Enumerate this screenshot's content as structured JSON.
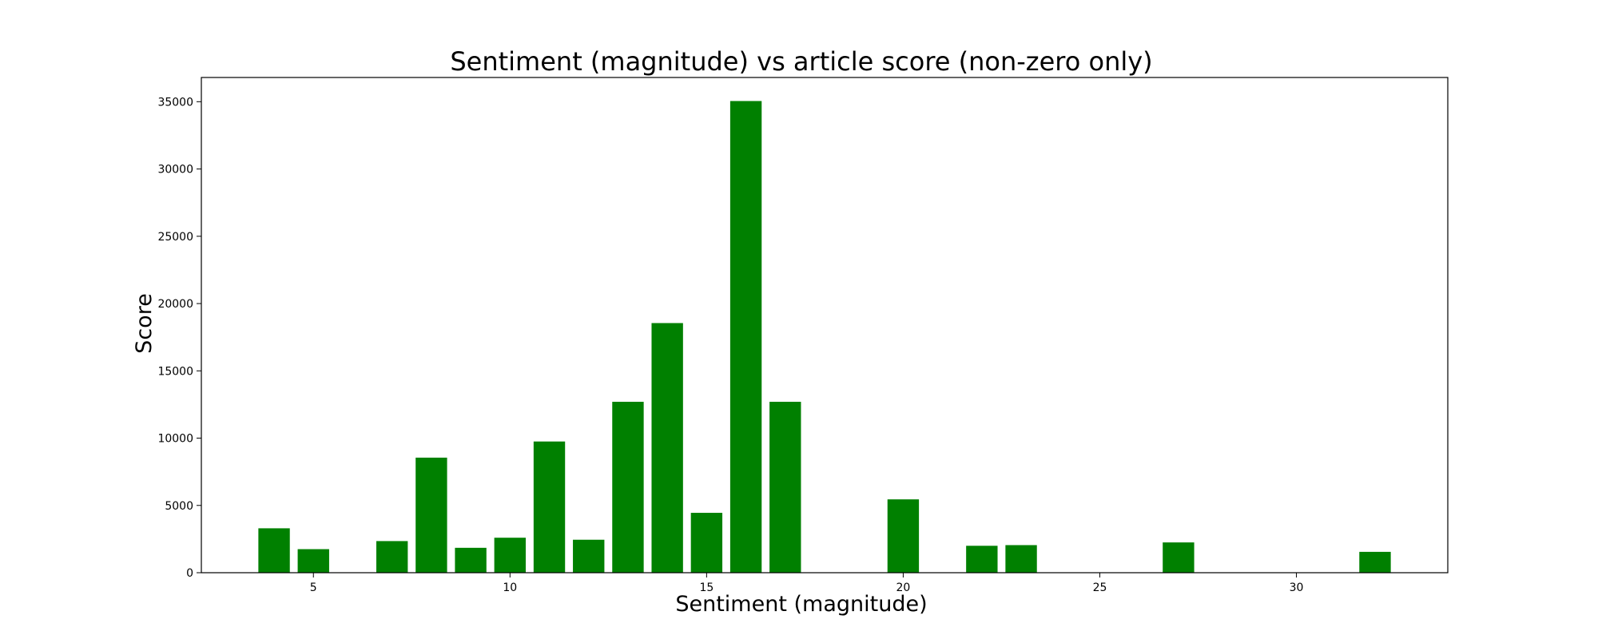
{
  "chart_data": {
    "type": "bar",
    "title": "Sentiment (magnitude) vs article score (non-zero only)",
    "xlabel": "Sentiment (magnitude)",
    "ylabel": "Score",
    "x": [
      4,
      5,
      7,
      8,
      9,
      10,
      11,
      12,
      13,
      14,
      15,
      16,
      17,
      20,
      22,
      23,
      27,
      32
    ],
    "values": [
      3300,
      1750,
      2350,
      8550,
      1850,
      2600,
      9750,
      2450,
      12700,
      18550,
      4450,
      35050,
      12700,
      5450,
      2000,
      2050,
      2250,
      1550
    ],
    "xlim": [
      2.15,
      33.85
    ],
    "ylim": [
      0,
      36800
    ],
    "xticks": [
      5,
      10,
      15,
      20,
      25,
      30
    ],
    "yticks": [
      0,
      5000,
      10000,
      15000,
      20000,
      25000,
      30000,
      35000
    ],
    "bar_color": "#008000",
    "grid": false,
    "legend": "none"
  }
}
